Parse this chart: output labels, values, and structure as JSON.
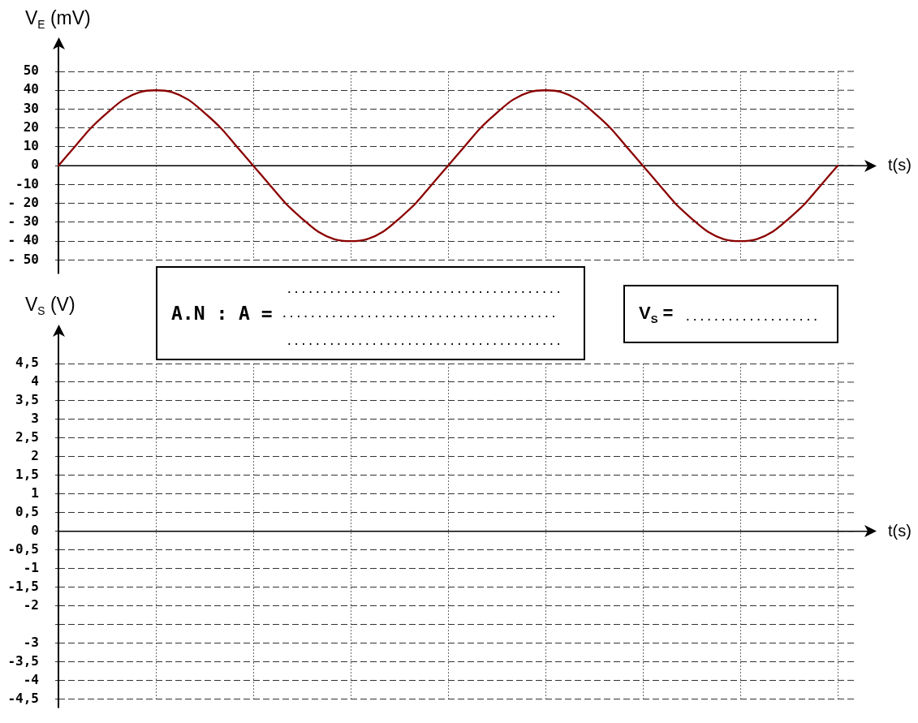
{
  "chart_data": [
    {
      "type": "line",
      "ylabel": "V$_{E}$ (mV)",
      "xlabel": "t(s)",
      "categories": [
        null,
        null,
        null,
        null,
        null,
        null,
        null,
        null,
        null,
        null,
        null,
        null,
        null,
        null,
        null,
        null,
        null,
        null,
        null,
        null,
        null,
        null,
        null,
        null,
        null,
        null,
        null,
        null,
        null,
        null,
        null,
        null,
        null,
        null,
        null,
        null,
        null,
        null,
        null,
        null,
        null,
        null,
        null,
        null,
        null,
        null,
        null,
        null,
        null
      ],
      "series": [
        {
          "color": "#8b0000",
          "values": [
            0,
            10,
            20,
            28,
            35,
            39,
            40,
            39,
            35,
            28,
            20,
            10,
            0,
            -10,
            -20,
            -28,
            -35,
            -39,
            -40,
            -39,
            -35,
            -28,
            -20,
            -10,
            0,
            10,
            20,
            28,
            35,
            39,
            40,
            39,
            35,
            28,
            20,
            10,
            0,
            -10,
            -20,
            -28,
            -35,
            -39,
            -40,
            -39,
            -35,
            -28,
            -20,
            -10,
            0
          ]
        }
      ],
      "ylim": [
        -50,
        50
      ],
      "yticks": [
        {
          "value": -50,
          "label": "- 50"
        },
        {
          "value": -40,
          "label": "- 40"
        },
        {
          "value": -30,
          "label": "- 30"
        },
        {
          "value": -20,
          "label": "- 20"
        },
        -10,
        0,
        10,
        20,
        30,
        40,
        50
      ],
      "grid": true,
      "tick_labels": "y",
      "marker": "none"
    },
    {
      "type": "line",
      "ylabel": "V$_{S}$ (V)",
      "xlabel": "t(s)",
      "categories": [
        null,
        null,
        null,
        null,
        null,
        null,
        null,
        null,
        null
      ],
      "values": [
        null,
        null,
        null,
        null,
        null,
        null,
        null,
        null,
        null
      ],
      "ylim": [
        -4.5,
        4.5
      ],
      "yticks": [
        {
          "value": -4.5,
          "label": "-4,5"
        },
        -4,
        {
          "value": -3.5,
          "label": "-3,5"
        },
        -3,
        {
          "value": -2.5,
          "label": null
        },
        -2,
        {
          "value": -1.5,
          "label": "-1,5"
        },
        -1,
        {
          "value": -0.5,
          "label": "-0,5"
        },
        0,
        {
          "value": 0.5,
          "label": "0,5"
        },
        1,
        {
          "value": 1.5,
          "label": "1,5"
        },
        2,
        {
          "value": 2.5,
          "label": "2,5"
        },
        3,
        {
          "value": 3.5,
          "label": "3,5"
        },
        4,
        {
          "value": 4.5,
          "label": "4,5"
        }
      ],
      "grid": true,
      "tick_labels": "y",
      "marker": "none",
      "annotations": [
        ".......................................",
        "A.N : A =",
        ".......................................",
        ".......................................",
        "V$_{S}$ =",
        "..................."
      ]
    }
  ]
}
